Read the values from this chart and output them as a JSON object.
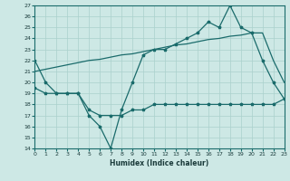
{
  "xlabel": "Humidex (Indice chaleur)",
  "bg_color": "#cde8e5",
  "grid_color": "#aad0cc",
  "line_color": "#1a6b6b",
  "ylim": [
    14,
    27
  ],
  "xlim": [
    0,
    23
  ],
  "yticks": [
    14,
    15,
    16,
    17,
    18,
    19,
    20,
    21,
    22,
    23,
    24,
    25,
    26,
    27
  ],
  "xticks": [
    0,
    1,
    2,
    3,
    4,
    5,
    6,
    7,
    8,
    9,
    10,
    11,
    12,
    13,
    14,
    15,
    16,
    17,
    18,
    19,
    20,
    21,
    22,
    23
  ],
  "line1_x": [
    0,
    1,
    2,
    3,
    4,
    5,
    6,
    7,
    8,
    9,
    10,
    11,
    12,
    13,
    14,
    15,
    16,
    17,
    18,
    19,
    20,
    21,
    22,
    23
  ],
  "line1_y": [
    22,
    20,
    19.0,
    19.0,
    19.0,
    17.0,
    16.0,
    14.0,
    17.5,
    20.0,
    22.5,
    23.0,
    23.0,
    23.5,
    24.0,
    24.5,
    25.5,
    25.0,
    27.0,
    25.0,
    24.5,
    22.0,
    20.0,
    18.5
  ],
  "line2_x": [
    0,
    1,
    2,
    3,
    4,
    5,
    6,
    7,
    8,
    9,
    10,
    11,
    12,
    13,
    14,
    15,
    16,
    17,
    18,
    19,
    20,
    21,
    22,
    23
  ],
  "line2_y": [
    19.5,
    19.0,
    19.0,
    19.0,
    19.0,
    17.5,
    17.0,
    17.0,
    17.0,
    17.5,
    17.5,
    18.0,
    18.0,
    18.0,
    18.0,
    18.0,
    18.0,
    18.0,
    18.0,
    18.0,
    18.0,
    18.0,
    18.0,
    18.5
  ],
  "line3_x": [
    0,
    1,
    2,
    3,
    4,
    5,
    6,
    7,
    8,
    9,
    10,
    11,
    12,
    13,
    14,
    15,
    16,
    17,
    18,
    19,
    20,
    21,
    22,
    23
  ],
  "line3_y": [
    21.0,
    21.2,
    21.4,
    21.6,
    21.8,
    22.0,
    22.1,
    22.3,
    22.5,
    22.6,
    22.8,
    23.0,
    23.2,
    23.4,
    23.5,
    23.7,
    23.9,
    24.0,
    24.2,
    24.3,
    24.5,
    24.5,
    22.0,
    20.0
  ]
}
